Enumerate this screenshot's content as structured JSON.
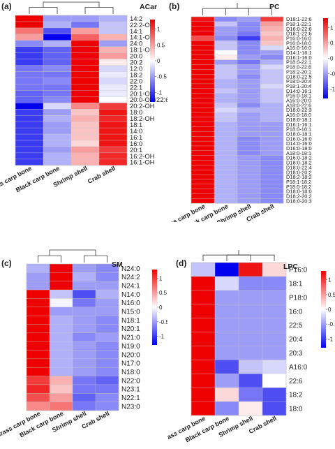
{
  "samples": [
    "Grass carp bone",
    "Black carp bone",
    "Shrimp shell",
    "Crab shell"
  ],
  "colors": {
    "low": "#0000ee",
    "mid": "#ffffff",
    "high": "#ee0000"
  },
  "chart_data": [
    {
      "panel": "(a)",
      "title": "ACar",
      "type": "heatmap",
      "columns": [
        "Grass carp bone",
        "Black carp bone",
        "Shrimp shell",
        "Crab shell"
      ],
      "color_scale": {
        "min": -1.3,
        "max": 1.3,
        "ticks": [
          "1",
          "0.5",
          "0",
          "-0.5",
          "-1"
        ]
      },
      "rows": [
        "14:2",
        "22:2-OH",
        "14:1",
        "14:1-OH",
        "24:0",
        "18:1-OH",
        "20:0",
        "20:2",
        "12:0",
        "18:2",
        "22:0",
        "22:1",
        "20:1-OH",
        "20:0-OH/22:6",
        "20:2-OH",
        "18:0",
        "18:2-OH",
        "18:1",
        "14:0",
        "16:1",
        "16:0",
        "20:1",
        "16:2-OH",
        "16:1-OH"
      ],
      "values": [
        [
          1.4,
          -0.5,
          -0.5,
          -0.4
        ],
        [
          1.4,
          -0.4,
          -0.7,
          -0.3
        ],
        [
          0.7,
          -0.9,
          0.5,
          -0.3
        ],
        [
          0.5,
          -1.7,
          0.8,
          0.4
        ],
        [
          -0.6,
          -0.4,
          1.5,
          -0.5
        ],
        [
          -1.0,
          -0.8,
          1.3,
          0.4
        ],
        [
          -1.0,
          -0.8,
          1.3,
          0.5
        ],
        [
          -1.0,
          -0.8,
          1.3,
          0.1
        ],
        [
          -0.7,
          -0.6,
          1.5,
          -0.2
        ],
        [
          -0.7,
          -0.7,
          1.5,
          -0.1
        ],
        [
          -0.7,
          -0.6,
          1.5,
          -0.2
        ],
        [
          -0.7,
          -0.7,
          1.5,
          -0.1
        ],
        [
          -0.8,
          -0.7,
          1.5,
          -0.1
        ],
        [
          -0.8,
          -0.6,
          1.5,
          0.0
        ],
        [
          -1.4,
          -0.2,
          0.6,
          1.0
        ],
        [
          -1.0,
          -0.5,
          0.3,
          1.2
        ],
        [
          -1.0,
          -0.4,
          0.4,
          1.1
        ],
        [
          -1.0,
          -0.5,
          0.3,
          1.2
        ],
        [
          -1.0,
          -0.5,
          0.3,
          1.2
        ],
        [
          -1.0,
          -0.4,
          0.3,
          1.2
        ],
        [
          -1.0,
          -0.4,
          0.2,
          1.2
        ],
        [
          -1.0,
          -0.5,
          0.5,
          1.0
        ],
        [
          -1.0,
          -0.4,
          0.4,
          1.1
        ],
        [
          -1.0,
          -0.4,
          0.4,
          1.1
        ]
      ]
    },
    {
      "panel": "(b)",
      "title": "PC",
      "type": "heatmap",
      "columns": [
        "Grass carp bone",
        "Black carp bone",
        "Shrimp shell",
        "Crab shell"
      ],
      "color_scale": {
        "min": -1.3,
        "max": 1.3,
        "ticks": [
          "1",
          "0.5",
          "0",
          "-0.5",
          "-1"
        ]
      },
      "rows": [
        "D18:1-22:6",
        "P18:1-22:1",
        "D16:0-22:6",
        "D18:1-22:6",
        "P16:0-16:0",
        "P16:0-18:0",
        "A16:0-16:0",
        "D14:1-16:1",
        "D16:1-16:0",
        "P18:0-22:1",
        "P18:0-22:6",
        "P18:2-20:1",
        "D18:0-22:5",
        "P18:0-20:4",
        "P18:1-20:4",
        "D14:0-16:1",
        "P16:0-18:1",
        "A16:0-20:0",
        "A18:0-22:6",
        "D18:0-22:3",
        "A16:0-18:0",
        "D18:0-18:1",
        "D16:1-16:1",
        "P18:0-18:1",
        "D18:0-18:1",
        "D16:0-16:0",
        "D14:0-16:0",
        "D16:0-18:0",
        "A18:0-18:1",
        "D16:0-18:2",
        "D18:0-18:2",
        "D18:0-22:4",
        "D18:0-20:2",
        "D18:2-18:2",
        "P18:1-18:2",
        "P18:0-18:2",
        "D18:0-18:0",
        "D18:2-20:2",
        "D18:0-20:3"
      ],
      "values": [
        [
          1.2,
          -0.6,
          -0.5,
          1.0
        ],
        [
          1.3,
          -0.3,
          -0.6,
          0.5
        ],
        [
          1.3,
          -0.5,
          -0.6,
          0.4
        ],
        [
          1.4,
          -0.5,
          -0.7,
          0.3
        ],
        [
          0.9,
          -0.6,
          -1.0,
          0.4
        ],
        [
          1.4,
          -0.3,
          -0.6,
          0.3
        ],
        [
          1.4,
          -0.3,
          -0.6,
          -0.2
        ],
        [
          1.4,
          0.0,
          -0.6,
          -0.5
        ],
        [
          1.4,
          0.1,
          -0.5,
          -0.6
        ],
        [
          1.4,
          -0.5,
          -0.7,
          -0.4
        ],
        [
          1.4,
          -0.3,
          -0.5,
          -0.2
        ],
        [
          1.4,
          -0.3,
          -0.5,
          -0.3
        ],
        [
          1.4,
          -0.3,
          -0.6,
          -0.3
        ],
        [
          1.4,
          -0.4,
          -0.5,
          -0.3
        ],
        [
          1.4,
          -0.4,
          -0.5,
          -0.2
        ],
        [
          1.4,
          -0.3,
          -0.5,
          -0.3
        ],
        [
          1.4,
          -0.4,
          -0.5,
          -0.3
        ],
        [
          1.4,
          -0.4,
          -0.5,
          -0.3
        ],
        [
          1.4,
          -0.3,
          -0.6,
          -0.4
        ],
        [
          1.4,
          -0.2,
          -0.4,
          -0.4
        ],
        [
          1.4,
          -0.3,
          -0.5,
          -0.4
        ],
        [
          1.4,
          -0.3,
          -0.5,
          -0.4
        ],
        [
          1.4,
          -0.4,
          -0.5,
          -0.5
        ],
        [
          1.4,
          -0.4,
          -0.5,
          -0.5
        ],
        [
          1.4,
          -0.4,
          -0.5,
          -0.5
        ],
        [
          1.4,
          -0.4,
          -0.6,
          -0.5
        ],
        [
          1.4,
          -0.4,
          -0.6,
          -0.5
        ],
        [
          1.4,
          -0.4,
          -0.6,
          -0.5
        ],
        [
          1.4,
          -0.4,
          -0.6,
          -0.5
        ],
        [
          1.4,
          -0.4,
          -0.5,
          -0.6
        ],
        [
          1.4,
          -0.4,
          -0.5,
          -0.6
        ],
        [
          1.4,
          -0.4,
          -0.5,
          -0.6
        ],
        [
          1.4,
          -0.4,
          -0.5,
          -0.6
        ],
        [
          1.4,
          -0.4,
          -0.5,
          -0.6
        ],
        [
          1.4,
          -0.4,
          -0.5,
          -0.6
        ],
        [
          1.4,
          -0.4,
          -0.5,
          -0.6
        ],
        [
          1.4,
          -0.4,
          -0.5,
          -0.6
        ],
        [
          1.4,
          -0.4,
          -0.5,
          -0.6
        ],
        [
          1.4,
          -0.4,
          -0.5,
          -0.6
        ]
      ]
    },
    {
      "panel": "(c)",
      "title": "SM",
      "type": "heatmap",
      "columns": [
        "Grass carp bone",
        "Black carp bone",
        "Shrimp shell",
        "Crab shell"
      ],
      "color_scale": {
        "min": -1.3,
        "max": 1.3,
        "ticks": [
          "1",
          "0.5",
          "0",
          "-0.5",
          "-1"
        ]
      },
      "rows": [
        "N24:0",
        "N24:2",
        "N24:1",
        "N14:0",
        "N16:0",
        "N15:0",
        "N18:1",
        "N20:1",
        "N21:0",
        "N19:0",
        "N20:0",
        "N17:0",
        "N18:0",
        "N22:0",
        "N23:1",
        "N22:1",
        "N23:0"
      ],
      "values": [
        [
          -0.4,
          1.5,
          -0.5,
          -0.6
        ],
        [
          -0.5,
          1.5,
          -0.4,
          -0.6
        ],
        [
          -0.5,
          1.5,
          -0.5,
          -0.5
        ],
        [
          1.5,
          -0.3,
          -0.9,
          -0.4
        ],
        [
          1.5,
          -0.05,
          -0.7,
          -0.5
        ],
        [
          1.5,
          -0.5,
          -0.5,
          -0.5
        ],
        [
          1.5,
          -0.4,
          -0.5,
          -0.6
        ],
        [
          1.5,
          -0.4,
          -0.5,
          -0.6
        ],
        [
          1.5,
          -0.4,
          -0.6,
          -0.5
        ],
        [
          1.5,
          -0.4,
          -0.5,
          -0.6
        ],
        [
          1.5,
          -0.4,
          -0.5,
          -0.6
        ],
        [
          1.5,
          -0.4,
          -0.5,
          -0.6
        ],
        [
          1.5,
          -0.4,
          -0.5,
          -0.6
        ],
        [
          1.0,
          0.4,
          -0.7,
          -0.8
        ],
        [
          1.1,
          0.3,
          -0.7,
          -0.7
        ],
        [
          0.9,
          0.5,
          -0.8,
          -0.6
        ],
        [
          0.6,
          0.7,
          -0.7,
          -0.6
        ]
      ]
    },
    {
      "panel": "(d)",
      "title": "LPC",
      "type": "heatmap",
      "columns": [
        "Grass carp bone",
        "Black carp bone",
        "Shrimp shell",
        "Crab shell"
      ],
      "color_scale": {
        "min": -1.3,
        "max": 1.3,
        "ticks": [
          "1",
          "0.5",
          "0",
          "-0.5",
          "-1"
        ]
      },
      "rows": [
        "P16:0",
        "18:1",
        "P18:0",
        "16:0",
        "22:5",
        "20:4",
        "20:3",
        "A16:0",
        "22:6",
        "18:2",
        "18:0"
      ],
      "values": [
        [
          -0.3,
          -1.3,
          1.2,
          0.2
        ],
        [
          1.4,
          -0.2,
          -0.6,
          -0.6
        ],
        [
          1.5,
          -0.5,
          -0.5,
          -0.5
        ],
        [
          1.5,
          -0.5,
          -0.5,
          -0.5
        ],
        [
          1.5,
          -0.5,
          -0.5,
          -0.5
        ],
        [
          1.5,
          -0.5,
          -0.5,
          -0.5
        ],
        [
          1.5,
          -0.5,
          -0.5,
          -0.5
        ],
        [
          1.4,
          -0.9,
          -0.3,
          -0.2
        ],
        [
          1.4,
          -0.5,
          -0.9,
          0.0
        ],
        [
          1.4,
          0.2,
          -0.7,
          -0.9
        ],
        [
          1.4,
          -0.6,
          0.1,
          -0.9
        ]
      ]
    }
  ]
}
